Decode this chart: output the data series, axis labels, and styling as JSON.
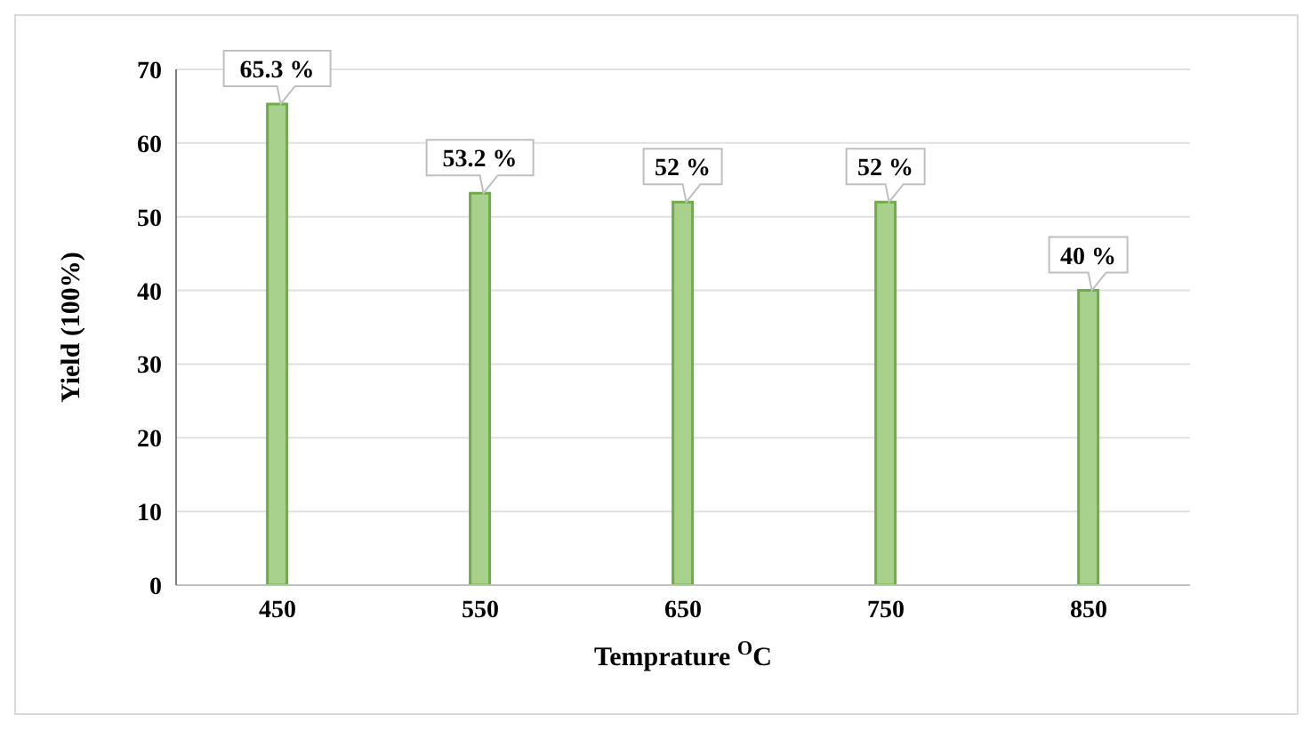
{
  "chart_data": {
    "type": "bar",
    "xlabel": "Temprature $^{O}$C",
    "ylabel": "Yield (100%)",
    "categories": [
      "450",
      "550",
      "650",
      "750",
      "850"
    ],
    "values": [
      65.3,
      53.2,
      52,
      52,
      40
    ],
    "value_labels": [
      "65.3 %",
      "53.2 %",
      "52 %",
      "52 %",
      "40 %"
    ],
    "color": "#a9d18e",
    "ylim": [
      0,
      70
    ],
    "yticks": [
      0,
      10,
      20,
      30,
      40,
      50,
      60,
      70
    ],
    "grid": "y"
  }
}
